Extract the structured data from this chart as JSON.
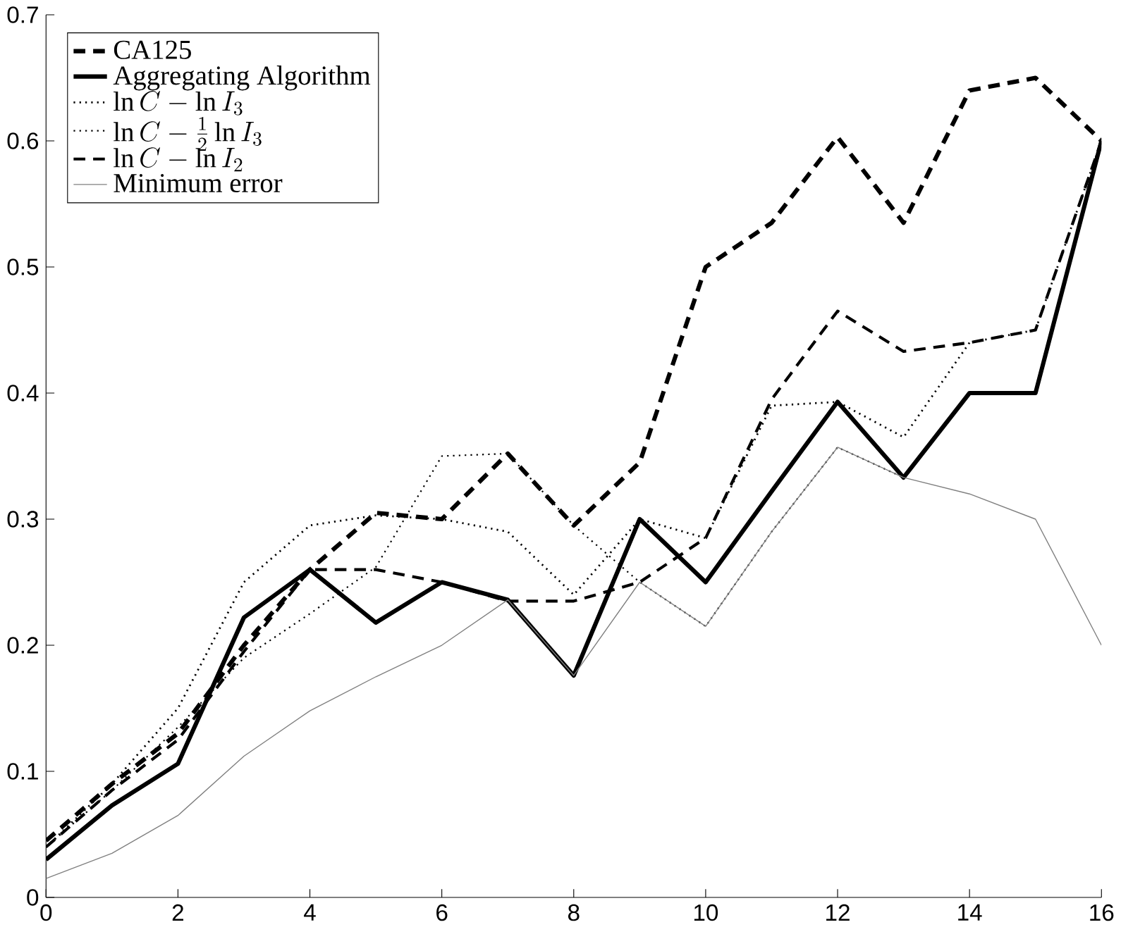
{
  "chart_data": {
    "type": "line",
    "x": [
      0,
      1,
      2,
      3,
      4,
      5,
      6,
      7,
      8,
      9,
      10,
      11,
      12,
      13,
      14,
      15,
      16
    ],
    "xlim": [
      0,
      16
    ],
    "ylim": [
      0,
      0.7
    ],
    "xticks": [
      0,
      2,
      4,
      6,
      8,
      10,
      12,
      14,
      16
    ],
    "yticks": [
      0,
      0.1,
      0.2,
      0.3,
      0.4,
      0.5,
      0.6,
      0.7
    ],
    "legend": "top left",
    "grid": false,
    "marker": "none",
    "series": [
      {
        "name": "CA125",
        "color": "#000000",
        "line_style": "dashed",
        "values": [
          0.045,
          0.09,
          0.13,
          0.2,
          0.26,
          0.305,
          0.3,
          0.352,
          0.295,
          0.345,
          0.5,
          0.535,
          0.603,
          0.535,
          0.64,
          0.65,
          0.6
        ]
      },
      {
        "name": "Aggregating Algorithm",
        "color": "#000000",
        "line_style": "solid",
        "values": [
          0.03,
          0.073,
          0.106,
          0.222,
          0.26,
          0.218,
          0.25,
          0.236,
          0.176,
          0.3,
          0.25,
          0.322,
          0.393,
          0.333,
          0.4,
          0.4,
          0.6
        ]
      },
      {
        "name": "\\ln C - \\ln I_3",
        "color": "#000000",
        "line_style": "dotted",
        "values": [
          0.04,
          0.09,
          0.15,
          0.25,
          0.295,
          0.303,
          0.3,
          0.29,
          0.24,
          0.3,
          0.285,
          0.39,
          0.393,
          0.365,
          0.44,
          0.45,
          0.6
        ]
      },
      {
        "name": "\\ln C - \\frac{1}{2}\\ln I_3",
        "color": "#000000",
        "line_style": "dotted",
        "values": [
          0.04,
          0.085,
          0.135,
          0.19,
          0.225,
          0.262,
          0.35,
          0.352,
          0.295,
          0.25,
          0.215,
          0.29,
          0.357,
          0.333,
          0.4,
          0.4,
          0.6
        ]
      },
      {
        "name": "\\ln C - \\ln I_2",
        "color": "#000000",
        "line_style": "dashed",
        "values": [
          0.04,
          0.085,
          0.125,
          0.195,
          0.26,
          0.26,
          0.25,
          0.235,
          0.235,
          0.25,
          0.285,
          0.395,
          0.465,
          0.433,
          0.44,
          0.45,
          0.6
        ]
      },
      {
        "name": "Minimum error",
        "color": "#808080",
        "line_style": "solid",
        "values": [
          0.015,
          0.035,
          0.065,
          0.112,
          0.148,
          0.175,
          0.2,
          0.236,
          0.176,
          0.25,
          0.215,
          0.29,
          0.357,
          0.333,
          0.32,
          0.3,
          0.2
        ]
      }
    ]
  }
}
